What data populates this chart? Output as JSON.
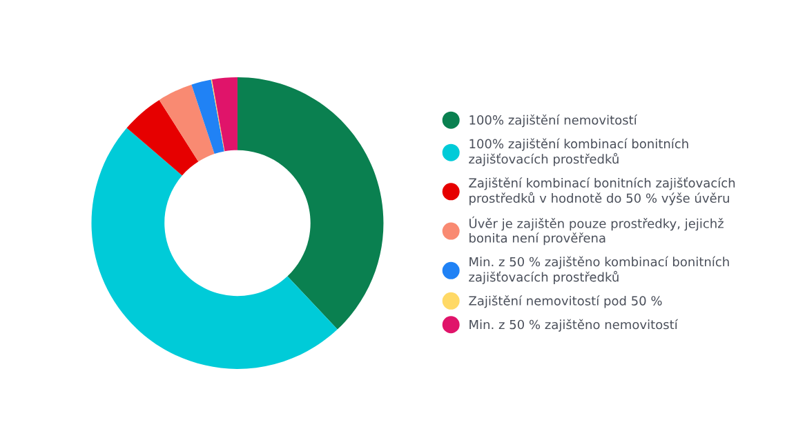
{
  "chart_data": {
    "type": "donut",
    "categories": [
      "100% zajištění nemovitostí",
      "100% zajištění kombinací bonitních zajišťovacích prostředků",
      "Zajištění kombinací bonitních zajišťovacích prostředků v hodnotě do 50 % výše úvěru",
      "Úvěr je zajištěn pouze prostředky, jejichž bonita není prověřena",
      "Min. z 50 % zajištěno kombinací bonitních zajišťovacích prostředků",
      "Zajištění nemovitostí pod 50 %",
      "Min. z 50 % zajištěno nemovitostí"
    ],
    "values": [
      38,
      48.3,
      4.7,
      3.9,
      2.2,
      0.1,
      2.8
    ],
    "colors": [
      "#0a8050",
      "#00cbd8",
      "#e60000",
      "#f98a72",
      "#2082f5",
      "#ffd966",
      "#e0146a"
    ],
    "legend": "right"
  }
}
